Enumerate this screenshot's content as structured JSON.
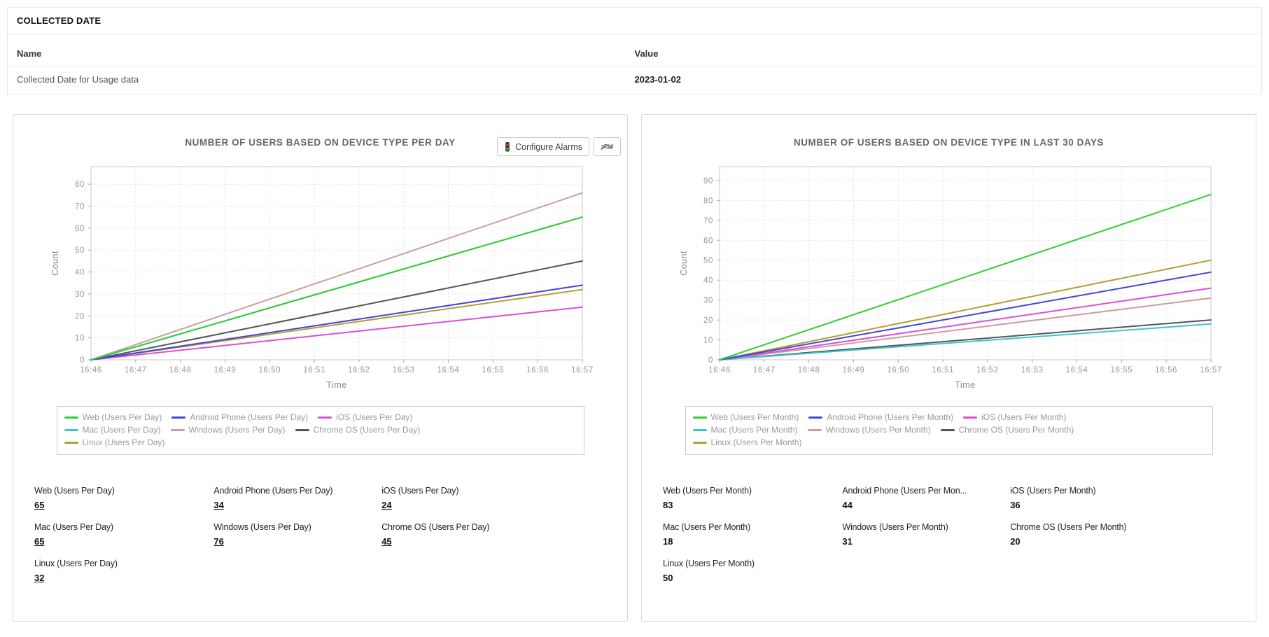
{
  "collected_date_section": {
    "title": "COLLECTED DATE",
    "columns": [
      "Name",
      "Value"
    ],
    "rows": [
      {
        "name": "Collected Date for Usage data",
        "value": "2023-01-02"
      }
    ]
  },
  "toolbar": {
    "configure_alarms_label": "Configure Alarms",
    "alarm_button_icon": "traffic-light-icon",
    "chart_button_icon": "line-chart-icon"
  },
  "chart_data": [
    {
      "type": "line",
      "title": "NUMBER OF USERS BASED ON DEVICE TYPE PER DAY",
      "xlabel": "Time",
      "ylabel": "Count",
      "x": [
        "16:46",
        "16:47",
        "16:48",
        "16:49",
        "16:50",
        "16:51",
        "16:52",
        "16:53",
        "16:54",
        "16:55",
        "16:56",
        "16:57"
      ],
      "ylim": [
        0,
        88
      ],
      "yticks": [
        0,
        10,
        20,
        30,
        40,
        50,
        60,
        70,
        80
      ],
      "grid": true,
      "legend_position": "bottom",
      "series": [
        {
          "name": "Web (Users Per Day)",
          "color": "#32cd32",
          "values": [
            0,
            65
          ]
        },
        {
          "name": "Android Phone (Users Per Day)",
          "color": "#4444d9",
          "values": [
            0,
            34
          ]
        },
        {
          "name": "iOS (Users Per Day)",
          "color": "#d94fd9",
          "values": [
            0,
            24
          ]
        },
        {
          "name": "Mac (Users Per Day)",
          "color": "#3fc6cc",
          "values": [
            0,
            65
          ]
        },
        {
          "name": "Windows (Users Per Day)",
          "color": "#c99f9f",
          "values": [
            0,
            76
          ]
        },
        {
          "name": "Chrome OS (Users Per Day)",
          "color": "#555555",
          "values": [
            0,
            45
          ]
        },
        {
          "name": "Linux (Users Per Day)",
          "color": "#b3a02e",
          "values": [
            0,
            32
          ]
        }
      ]
    },
    {
      "type": "line",
      "title": "NUMBER OF USERS BASED ON DEVICE TYPE IN LAST 30 DAYS",
      "xlabel": "Time",
      "ylabel": "Count",
      "x": [
        "16:46",
        "16:47",
        "16:48",
        "16:49",
        "16:50",
        "16:51",
        "16:52",
        "16:53",
        "16:54",
        "16:55",
        "16:56",
        "16:57"
      ],
      "ylim": [
        0,
        97
      ],
      "yticks": [
        0,
        10,
        20,
        30,
        40,
        50,
        60,
        70,
        80,
        90
      ],
      "grid": true,
      "legend_position": "bottom",
      "series": [
        {
          "name": "Web (Users Per Month)",
          "color": "#32cd32",
          "values": [
            0,
            83
          ]
        },
        {
          "name": "Android Phone (Users Per Month)",
          "color": "#4444d9",
          "values": [
            0,
            44
          ]
        },
        {
          "name": "iOS (Users Per Month)",
          "color": "#d94fd9",
          "values": [
            0,
            36
          ]
        },
        {
          "name": "Mac (Users Per Month)",
          "color": "#3fc6cc",
          "values": [
            0,
            18
          ]
        },
        {
          "name": "Windows (Users Per Month)",
          "color": "#c99f9f",
          "values": [
            0,
            31
          ]
        },
        {
          "name": "Chrome OS (Users Per Month)",
          "color": "#555555",
          "values": [
            0,
            20
          ]
        },
        {
          "name": "Linux (Users Per Month)",
          "color": "#b3a02e",
          "values": [
            0,
            50
          ]
        }
      ]
    }
  ],
  "panels": [
    {
      "stats": [
        {
          "label": "Web (Users Per Day)",
          "value": "65"
        },
        {
          "label": "Android Phone (Users Per Day)",
          "value": "34"
        },
        {
          "label": "iOS (Users Per Day)",
          "value": "24"
        },
        {
          "label": "Mac (Users Per Day)",
          "value": "65"
        },
        {
          "label": "Windows (Users Per Day)",
          "value": "76"
        },
        {
          "label": "Chrome OS (Users Per Day)",
          "value": "45"
        },
        {
          "label": "Linux (Users Per Day)",
          "value": "32"
        }
      ]
    },
    {
      "stats": [
        {
          "label": "Web (Users Per Month)",
          "value": "83"
        },
        {
          "label": "Android Phone (Users Per Mon...",
          "value": "44"
        },
        {
          "label": "iOS (Users Per Month)",
          "value": "36"
        },
        {
          "label": "Mac (Users Per Month)",
          "value": "18"
        },
        {
          "label": "Windows (Users Per Month)",
          "value": "31"
        },
        {
          "label": "Chrome OS (Users Per Month)",
          "value": "20"
        },
        {
          "label": "Linux (Users Per Month)",
          "value": "50"
        }
      ]
    }
  ]
}
